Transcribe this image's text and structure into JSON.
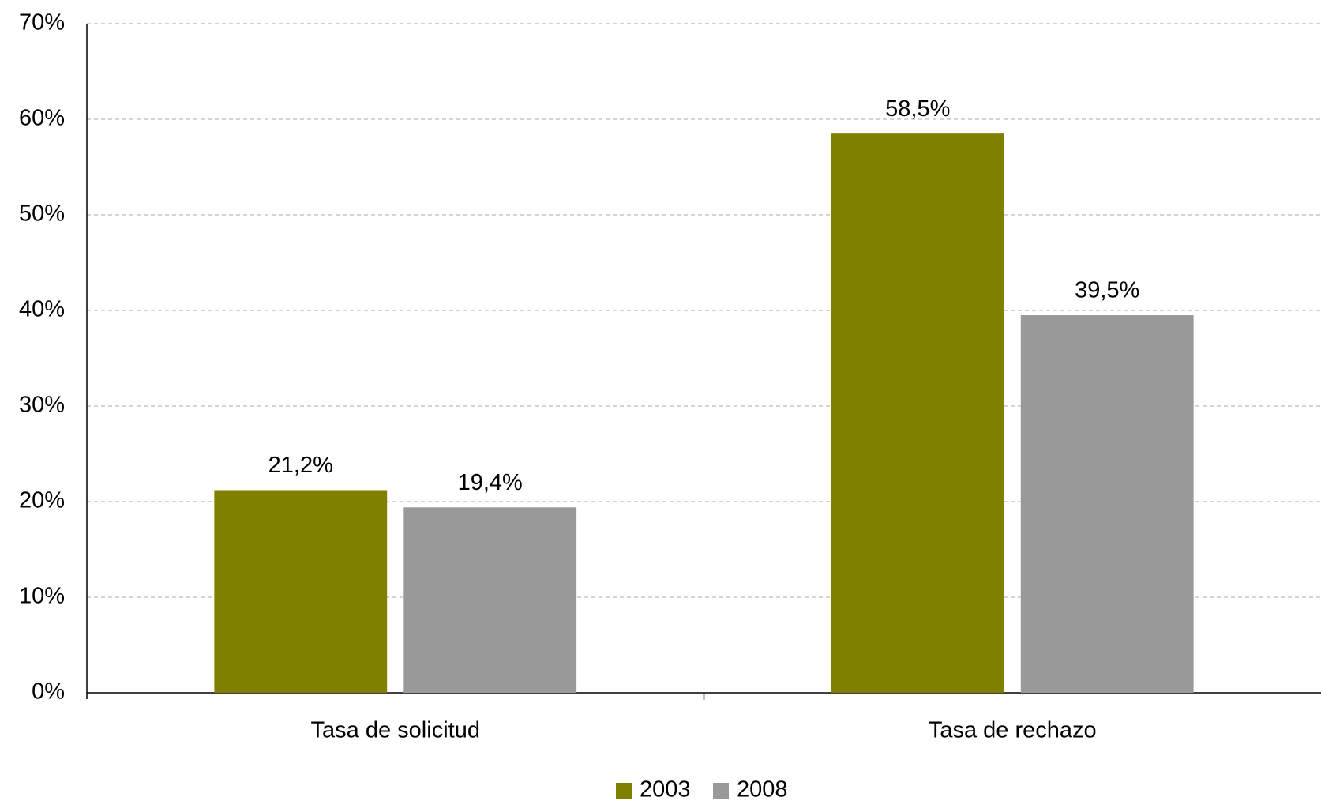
{
  "chart_data": {
    "type": "bar",
    "categories": [
      "Tasa de solicitud",
      "Tasa de rechazo"
    ],
    "series": [
      {
        "name": "2003",
        "color": "#808000",
        "values": [
          21.2,
          58.5
        ],
        "value_labels": [
          "21,2%",
          "58,5%"
        ]
      },
      {
        "name": "2008",
        "color": "#999999",
        "values": [
          19.4,
          39.5
        ],
        "value_labels": [
          "19,4%",
          "39,5%"
        ]
      }
    ],
    "ylim": [
      0,
      70
    ],
    "yticks": [
      {
        "value": 0,
        "label": "0%"
      },
      {
        "value": 10,
        "label": "10%"
      },
      {
        "value": 20,
        "label": "20%"
      },
      {
        "value": 30,
        "label": "30%"
      },
      {
        "value": 40,
        "label": "40%"
      },
      {
        "value": 50,
        "label": "50%"
      },
      {
        "value": 60,
        "label": "60%"
      },
      {
        "value": 70,
        "label": "70%"
      }
    ],
    "grid": true,
    "legend": "bottom"
  }
}
